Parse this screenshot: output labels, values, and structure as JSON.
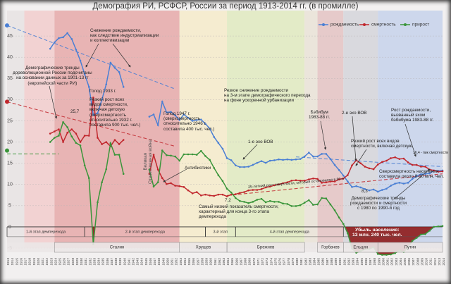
{
  "chart_data": {
    "type": "line",
    "title": "Демография РИ, РСФСР, России за период 1913-2014 гг. (в промилле)",
    "x": [
      1913,
      1914,
      1915,
      1916,
      1917,
      1918,
      1919,
      1920,
      1921,
      1922,
      1923,
      1924,
      1925,
      1926,
      1927,
      1928,
      1929,
      1930,
      1931,
      1932,
      1933,
      1934,
      1935,
      1936,
      1937,
      1938,
      1939,
      1940,
      1941,
      1942,
      1943,
      1944,
      1945,
      1946,
      1947,
      1948,
      1949,
      1950,
      1951,
      1952,
      1953,
      1954,
      1955,
      1956,
      1957,
      1958,
      1959,
      1960,
      1961,
      1962,
      1963,
      1964,
      1965,
      1966,
      1967,
      1968,
      1969,
      1970,
      1971,
      1972,
      1973,
      1974,
      1975,
      1976,
      1977,
      1978,
      1979,
      1980,
      1981,
      1982,
      1983,
      1984,
      1985,
      1986,
      1987,
      1988,
      1989,
      1990,
      1991,
      1992,
      1993,
      1994,
      1995,
      1996,
      1997,
      1998,
      1999,
      2000,
      2001,
      2002,
      2003,
      2004,
      2005,
      2006,
      2007,
      2008,
      2009,
      2010,
      2011,
      2012,
      2013,
      2014
    ],
    "xlim": [
      1913,
      2014
    ],
    "ylim": [
      -5,
      51
    ],
    "yticks": [
      -5,
      0,
      5,
      10,
      15,
      20,
      25,
      30,
      35,
      40,
      45
    ],
    "grid": true,
    "legend": "top-right",
    "series": [
      {
        "name": "рождаемость",
        "color": "#4a7fd4",
        "values": [
          47.5,
          null,
          null,
          null,
          null,
          null,
          null,
          null,
          null,
          null,
          42,
          43.5,
          44.5,
          44.7,
          45.7,
          44.3,
          41.8,
          39.2,
          36,
          33,
          26.4,
          26.8,
          30,
          33.6,
          38.7,
          37.5,
          36.5,
          33,
          null,
          null,
          null,
          null,
          null,
          26,
          26.5,
          24,
          29.5,
          27,
          27.1,
          26.3,
          25.2,
          26.5,
          25.7,
          25,
          25.2,
          25.3,
          24.3,
          23.2,
          21.2,
          19.8,
          18.4,
          16.2,
          15.7,
          14.5,
          14.1,
          14.1,
          14.2,
          14.6,
          15.1,
          15.5,
          15.1,
          15.6,
          15.7,
          15.9,
          15.8,
          15.9,
          15.8,
          15.9,
          16,
          16.6,
          17.5,
          16.6,
          16.6,
          17.2,
          17.2,
          16,
          14.6,
          13.4,
          12.1,
          10.7,
          9.4,
          9.6,
          9.3,
          8.9,
          8.6,
          8.8,
          8.3,
          8.7,
          9,
          9.7,
          10.2,
          10.4,
          10.2,
          10.4,
          11.3,
          12,
          12.4,
          12.5,
          12.6,
          13.3,
          13.2,
          13.3
        ]
      },
      {
        "name": "смертность",
        "color": "#c1272d",
        "values": [
          29.5,
          null,
          null,
          null,
          null,
          null,
          null,
          null,
          null,
          null,
          22,
          22.5,
          23,
          20,
          22.2,
          23,
          22,
          20,
          21.5,
          21.5,
          30.5,
          21,
          19.5,
          20,
          19,
          20.5,
          19.5,
          20.5,
          null,
          null,
          null,
          null,
          null,
          12.5,
          17,
          13.5,
          11.5,
          10.1,
          10.3,
          9.7,
          9.6,
          9.4,
          8.6,
          7.9,
          8.2,
          7.4,
          7.6,
          7.4,
          7.3,
          7.6,
          7.6,
          7.2,
          7.6,
          7.7,
          8,
          8.2,
          8.6,
          8.7,
          8.7,
          8.9,
          9.3,
          9.5,
          9.8,
          10,
          10.3,
          10.5,
          10.9,
          11,
          10.9,
          10.9,
          11.2,
          11.4,
          11.3,
          10.4,
          10.5,
          10.7,
          10.7,
          11.2,
          11.4,
          12.2,
          14.5,
          15.7,
          15,
          14.2,
          13.8,
          13.6,
          14.7,
          15.3,
          15.6,
          16.2,
          16.4,
          16,
          16.1,
          15.2,
          14.6,
          14.6,
          14.2,
          14.2,
          13.5,
          13.3,
          13,
          13.1
        ]
      },
      {
        "name": "прирост",
        "color": "#3a953a",
        "fill_negative": "#8e1b1b",
        "values": [
          18,
          null,
          null,
          null,
          null,
          null,
          null,
          null,
          null,
          null,
          20,
          21,
          21.5,
          24.7,
          23.5,
          21.3,
          19.8,
          19.2,
          14.5,
          11.5,
          -4.1,
          5.8,
          10.5,
          13.6,
          19.7,
          17,
          17,
          12.5,
          null,
          null,
          null,
          null,
          null,
          13.5,
          9.5,
          10.5,
          18,
          16.9,
          16.8,
          16.6,
          15.6,
          17.1,
          17.1,
          17.1,
          17,
          17.9,
          16.7,
          15.8,
          13.9,
          12.2,
          10.8,
          9,
          8.1,
          6.8,
          6.1,
          5.9,
          5.6,
          5.9,
          6.4,
          6.6,
          5.8,
          6.1,
          5.9,
          5.9,
          5.5,
          5.4,
          4.9,
          4.9,
          5.1,
          5.7,
          6.3,
          5.2,
          5.3,
          6.8,
          6.7,
          5.3,
          3.9,
          2.2,
          0.7,
          -1.5,
          -5.1,
          -6.1,
          -5.7,
          -5.3,
          -5.2,
          -4.8,
          -6.4,
          -6.6,
          -6.6,
          -6.5,
          -6.2,
          -5.6,
          -5.9,
          -4.8,
          -3.3,
          -2.6,
          -1.8,
          -1.7,
          -0.9,
          0,
          0.1,
          0.2
        ]
      }
    ],
    "trend_lines": [
      {
        "color": "#4a7fd4",
        "x": [
          1913,
          1952
        ],
        "y": [
          47.5,
          32.5
        ]
      },
      {
        "color": "#c1272d",
        "x": [
          1913,
          1952
        ],
        "y": [
          29.5,
          19
        ]
      },
      {
        "color": "#3a953a",
        "x": [
          1913,
          1925
        ],
        "y": [
          17.2,
          17.2
        ]
      },
      {
        "color": "#c1272d",
        "x": [
          1964,
          2014
        ],
        "y": [
          7.4,
          12.5
        ]
      },
      {
        "color": "#4a7fd4",
        "x": [
          1980,
          2014
        ],
        "y": [
          16.5,
          14.2
        ]
      }
    ],
    "bands": [
      {
        "from": 1913,
        "to": 1917,
        "color": "#e9e5e5"
      },
      {
        "from": 1917,
        "to": 1924,
        "color": "#f2d2d2"
      },
      {
        "from": 1924,
        "to": 1953,
        "color": "#e8b4b4"
      },
      {
        "from": 1953,
        "to": 1964,
        "color": "#f5ecd0"
      },
      {
        "from": 1964,
        "to": 1982,
        "color": "#e3ebc7"
      },
      {
        "from": 1982,
        "to": 1985,
        "color": "#ebe5db"
      },
      {
        "from": 1985,
        "to": 1991,
        "color": "#e6caca"
      },
      {
        "from": 1991,
        "to": 1999,
        "color": "#d9d9de"
      },
      {
        "from": 1999,
        "to": 2014,
        "color": "#cdd7ec"
      }
    ],
    "leaders": [
      {
        "name": "Сталин",
        "from": 1924,
        "to": 1953
      },
      {
        "name": "Хрущев",
        "from": 1953,
        "to": 1964
      },
      {
        "name": "Брежнев",
        "from": 1964,
        "to": 1982
      },
      {
        "name": "Горбачев",
        "from": 1985,
        "to": 1991
      },
      {
        "name": "Ельцин",
        "from": 1991,
        "to": 1999
      },
      {
        "name": "Путин",
        "from": 1999,
        "to": 2014
      }
    ],
    "phases": [
      {
        "name": "1-й этап демперехода",
        "from": 1913,
        "to": 1931
      },
      {
        "name": "2-й этап демперехода",
        "from": 1931,
        "to": 1959
      },
      {
        "name": "3-й этап",
        "from": 1959,
        "to": 1966
      },
      {
        "name": "4-й этап демперехода",
        "from": 1966,
        "to": 1991
      }
    ],
    "annotations": [
      "Снижение рождаемости,\nкак следствие индустриализации\nи коллективизации",
      "Демографические тренды\nдореволюционной России подсчитаны\nна основании данных за 1901-13 гг\n(европейской части РИ)",
      "Голод 1933 г.",
      "Резкий рост всех\nвидов смертности,\nвключая детскую\n(сверхсмертность\nотносительно 1932 г.\nсоставила 900 тыс. чел.)",
      "25,7",
      "Голод 1947 г.\n(сверхсмертность\nотносительно 1946 г.\nсоставила 400 тыс. чел.)",
      "Антибиотики",
      "Великая\nОтечественная война",
      "Резкое снижение рождаемости\nна 3-м этапе демографического перехода\nна фоне ускоренной урбанизации",
      "1-е эхо ВОВ",
      "Бэбибум\n1983-88 гг.",
      "2-е эхо ВОВ",
      "Рост рождаемости,\nвызванный эхом\nбэбибума 1983-88 гг.",
      "Резкий рост всех видов\nсмертности, включая детскую",
      "Сверхсмертность населения\nсоставила около 8-10 млн. чел.",
      "Демографические тренды\nрождаемости и смертности\nс 1980 по 1990-й год",
      "25-летний рост смертности, который остановился в 80-е",
      "Самый низкий показатель смертности,\nхарактерный для конца 3-го этапа\nдемперехода",
      "7,2",
      "Убыль населения:\n13 млн. 240 тыс. чел.",
      "16,4 - пик смертности",
      "8,3"
    ]
  }
}
